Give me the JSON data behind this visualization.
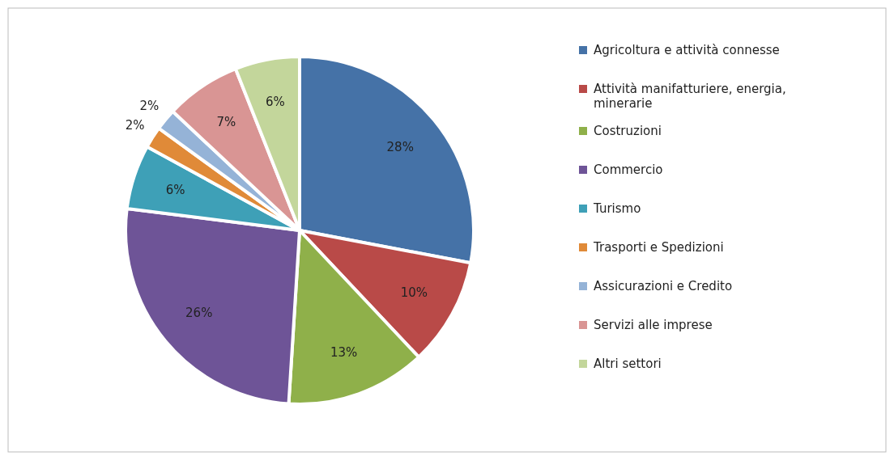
{
  "chart_data": {
    "type": "pie",
    "categories": [
      "Agricoltura e attività connesse",
      "Attività manifatturiere, energia, minerarie",
      "Costruzioni",
      "Commercio",
      "Turismo",
      "Trasporti e Spedizioni",
      "Assicurazioni e Credito",
      "Servizi alle imprese",
      "Altri settori"
    ],
    "values": [
      28,
      10,
      13,
      26,
      6,
      2,
      2,
      7,
      6
    ],
    "value_labels": [
      "28%",
      "10%",
      "13%",
      "26%",
      "6%",
      "2%",
      "2%",
      "7%",
      "6%"
    ],
    "colors": [
      "#4572a7",
      "#b94a48",
      "#8fb04a",
      "#6e5497",
      "#3ea0b7",
      "#e08a38",
      "#95b3d7",
      "#d99594",
      "#c3d69b"
    ],
    "legend": "right"
  }
}
